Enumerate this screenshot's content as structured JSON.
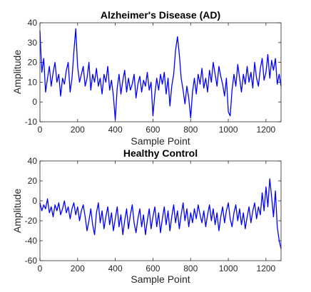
{
  "chart_data": [
    {
      "type": "line",
      "title": "Alzheimer's Disease (AD)",
      "xlabel": "Sample Point",
      "ylabel": "Amplitude",
      "xlim": [
        0,
        1280
      ],
      "ylim": [
        -10,
        40
      ],
      "xticks": [
        0,
        200,
        400,
        600,
        800,
        1000,
        1200
      ],
      "yticks": [
        -10,
        0,
        10,
        20,
        30,
        40
      ],
      "xtick_labels": [
        "0",
        "200",
        "400",
        "600",
        "800",
        "1000",
        "1200"
      ],
      "ytick_labels": [
        "-10",
        "0",
        "10",
        "20",
        "30",
        "40"
      ],
      "grid": false,
      "color": "#0000ff",
      "series": [
        {
          "x": [
            0,
            10,
            20,
            30,
            40,
            50,
            60,
            70,
            80,
            90,
            100,
            110,
            120,
            130,
            140,
            150,
            160,
            170,
            180,
            190,
            200,
            210,
            220,
            230,
            240,
            250,
            260,
            270,
            280,
            290,
            300,
            310,
            320,
            330,
            340,
            350,
            360,
            370,
            380,
            390,
            400,
            410,
            420,
            430,
            440,
            450,
            460,
            470,
            480,
            490,
            500,
            510,
            520,
            530,
            540,
            550,
            560,
            570,
            580,
            590,
            600,
            610,
            620,
            630,
            640,
            650,
            660,
            670,
            680,
            690,
            700,
            710,
            720,
            730,
            740,
            750,
            760,
            770,
            780,
            790,
            800,
            810,
            820,
            830,
            840,
            850,
            860,
            870,
            880,
            890,
            900,
            910,
            920,
            930,
            940,
            950,
            960,
            970,
            980,
            990,
            1000,
            1010,
            1020,
            1030,
            1040,
            1050,
            1060,
            1070,
            1080,
            1090,
            1100,
            1110,
            1120,
            1130,
            1140,
            1150,
            1160,
            1170,
            1180,
            1190,
            1200,
            1210,
            1220,
            1230,
            1240,
            1250,
            1260,
            1270,
            1280
          ],
          "values": [
            36,
            15,
            22,
            5,
            12,
            18,
            8,
            15,
            20,
            10,
            14,
            3,
            12,
            9,
            16,
            20,
            5,
            12,
            25,
            37,
            18,
            10,
            14,
            18,
            8,
            12,
            20,
            6,
            14,
            10,
            17,
            8,
            12,
            4,
            14,
            10,
            18,
            6,
            11,
            3,
            -9,
            7,
            14,
            4,
            11,
            16,
            5,
            12,
            6,
            9,
            14,
            2,
            9,
            13,
            5,
            11,
            8,
            15,
            6,
            10,
            -7,
            4,
            12,
            6,
            14,
            9,
            15,
            4,
            12,
            -2,
            8,
            14,
            26,
            33,
            24,
            12,
            6,
            -1,
            8,
            2,
            -8,
            5,
            12,
            4,
            14,
            9,
            17,
            7,
            12,
            5,
            16,
            10,
            20,
            14,
            8,
            18,
            13,
            9,
            3,
            12,
            -5,
            -7,
            6,
            14,
            8,
            19,
            12,
            5,
            14,
            9,
            18,
            10,
            15,
            7,
            20,
            12,
            8,
            17,
            22,
            11,
            15,
            24,
            12,
            21,
            16,
            22,
            9,
            14,
            8
          ]
        }
      ]
    },
    {
      "type": "line",
      "title": "Healthy Control",
      "xlabel": "Sample Point",
      "ylabel": "Amplitude",
      "xlim": [
        0,
        1280
      ],
      "ylim": [
        -60,
        40
      ],
      "xticks": [
        0,
        200,
        400,
        600,
        800,
        1000,
        1200
      ],
      "yticks": [
        -60,
        -40,
        -20,
        0,
        20,
        40
      ],
      "xtick_labels": [
        "0",
        "200",
        "400",
        "600",
        "800",
        "1000",
        "1200"
      ],
      "ytick_labels": [
        "-60",
        "-40",
        "-20",
        "0",
        "20",
        "40"
      ],
      "grid": false,
      "color": "#0000ff",
      "series": [
        {
          "x": [
            0,
            10,
            20,
            30,
            40,
            50,
            60,
            70,
            80,
            90,
            100,
            110,
            120,
            130,
            140,
            150,
            160,
            170,
            180,
            190,
            200,
            210,
            220,
            230,
            240,
            250,
            260,
            270,
            280,
            290,
            300,
            310,
            320,
            330,
            340,
            350,
            360,
            370,
            380,
            390,
            400,
            410,
            420,
            430,
            440,
            450,
            460,
            470,
            480,
            490,
            500,
            510,
            520,
            530,
            540,
            550,
            560,
            570,
            580,
            590,
            600,
            610,
            620,
            630,
            640,
            650,
            660,
            670,
            680,
            690,
            700,
            710,
            720,
            730,
            740,
            750,
            760,
            770,
            780,
            790,
            800,
            810,
            820,
            830,
            840,
            850,
            860,
            870,
            880,
            890,
            900,
            910,
            920,
            930,
            940,
            950,
            960,
            970,
            980,
            990,
            1000,
            1010,
            1020,
            1030,
            1040,
            1050,
            1060,
            1070,
            1080,
            1090,
            1100,
            1110,
            1120,
            1130,
            1140,
            1150,
            1160,
            1170,
            1180,
            1190,
            1200,
            1210,
            1220,
            1230,
            1240,
            1250,
            1260,
            1270,
            1280
          ],
          "values": [
            -2,
            -10,
            -4,
            -8,
            2,
            -12,
            -6,
            -16,
            -4,
            -10,
            -2,
            -14,
            -8,
            0,
            -12,
            -6,
            -18,
            -8,
            -2,
            -14,
            -6,
            -20,
            -10,
            -4,
            -16,
            -30,
            -20,
            -8,
            -24,
            -34,
            -12,
            -2,
            -22,
            -10,
            -28,
            -16,
            -6,
            -24,
            -12,
            -30,
            -18,
            -6,
            -26,
            -14,
            -34,
            -20,
            -8,
            -28,
            -14,
            -4,
            -22,
            -32,
            -18,
            -8,
            -26,
            -14,
            -34,
            -20,
            -8,
            -28,
            -16,
            -6,
            -26,
            -12,
            -32,
            -18,
            -6,
            -24,
            -10,
            -30,
            -16,
            -4,
            -22,
            -10,
            -28,
            -14,
            -2,
            -20,
            -8,
            -26,
            -12,
            -22,
            -8,
            -18,
            -4,
            -14,
            -22,
            -10,
            -26,
            -14,
            -4,
            -20,
            -8,
            -24,
            -12,
            -30,
            -16,
            -6,
            -22,
            -10,
            -2,
            -18,
            -26,
            -12,
            -4,
            -20,
            -8,
            -24,
            -12,
            -28,
            -16,
            -6,
            -22,
            -10,
            -2,
            -18,
            -6,
            -14,
            8,
            -10,
            14,
            -6,
            22,
            4,
            -16,
            10,
            -26,
            -40,
            -48
          ]
        }
      ]
    }
  ]
}
